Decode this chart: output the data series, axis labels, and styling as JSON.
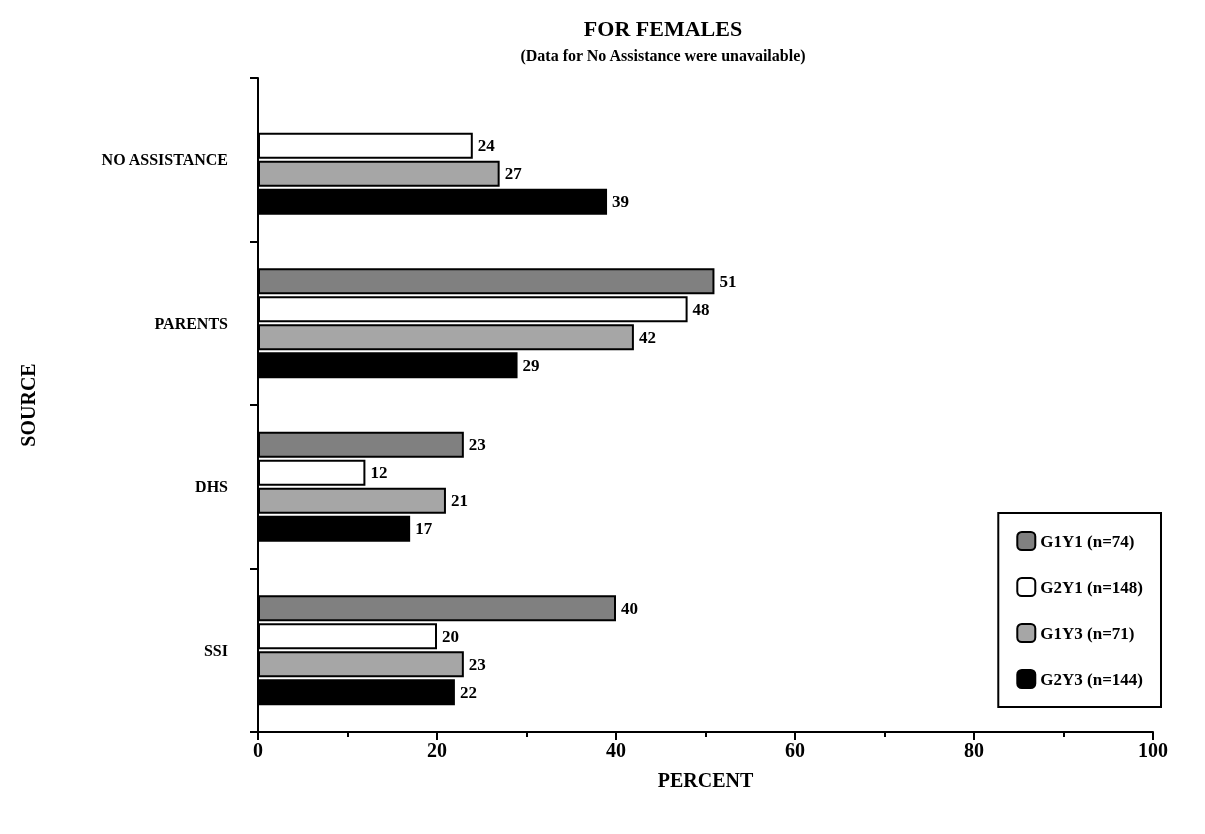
{
  "chart_data": {
    "type": "bar",
    "orientation": "horizontal",
    "title": "FOR FEMALES",
    "subtitle": "(Data for No Assistance were unavailable)",
    "xlabel": "PERCENT",
    "ylabel": "SOURCE",
    "categories": [
      "NO ASSISTANCE",
      "PARENTS",
      "DHS",
      "SSI"
    ],
    "series": [
      {
        "name": "G1Y1 (n=74)",
        "color": "#808080",
        "values": [
          null,
          51,
          23,
          40
        ]
      },
      {
        "name": "G2Y1 (n=148)",
        "color": "#ffffff",
        "values": [
          24,
          48,
          12,
          20
        ]
      },
      {
        "name": "G1Y3 (n=71)",
        "color": "#a6a6a6",
        "values": [
          27,
          42,
          21,
          23
        ]
      },
      {
        "name": "G2Y3 (n=144)",
        "color": "#000000",
        "values": [
          39,
          29,
          17,
          22
        ]
      }
    ],
    "xlim": [
      0,
      100
    ],
    "xticks": [
      0,
      20,
      40,
      60,
      80,
      100
    ],
    "data_labels": true,
    "grid": false,
    "legend": "bottom right"
  }
}
